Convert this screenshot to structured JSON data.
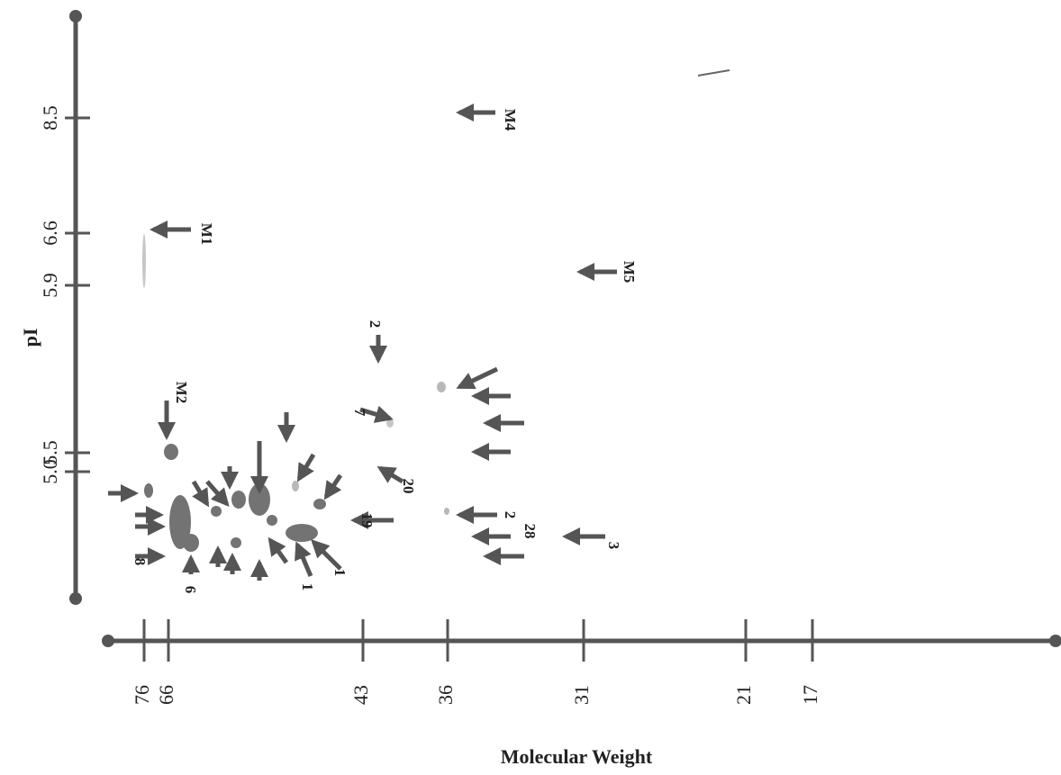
{
  "axes": {
    "y": {
      "label": "pI",
      "ticks": [
        "8.5",
        "6.6",
        "5.9",
        "5.5",
        "5.0"
      ]
    },
    "x": {
      "label": "Molecular Weight",
      "ticks": [
        "76",
        "66",
        "43",
        "36",
        "31",
        "21",
        "17"
      ]
    }
  },
  "annotations": [
    "M4",
    "M1",
    "M5",
    "M2",
    "2",
    "7",
    "20",
    "19",
    "2",
    "28",
    "3",
    "1",
    "1",
    "6",
    "8"
  ]
}
